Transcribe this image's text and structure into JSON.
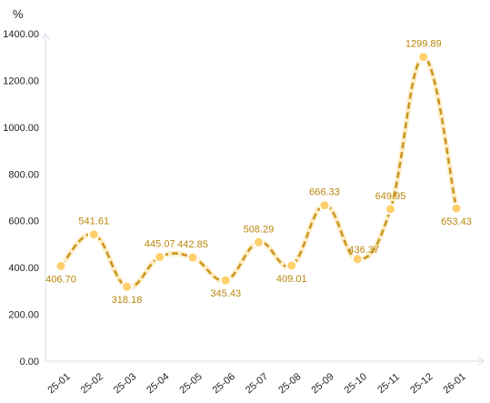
{
  "chart_data": {
    "type": "line",
    "title": "",
    "xlabel": "",
    "ylabel": "%",
    "categories": [
      "25-01",
      "25-02",
      "25-03",
      "25-04",
      "25-05",
      "25-06",
      "25-07",
      "25-08",
      "25-09",
      "25-10",
      "25-11",
      "25-12",
      "26-01"
    ],
    "series": [
      {
        "values": [
          406.7,
          541.61,
          318.18,
          445.07,
          442.85,
          345.43,
          508.29,
          409.01,
          666.33,
          436.37,
          649.95,
          1299.89,
          653.43
        ],
        "labels": [
          "406.70",
          "541.61",
          "318.18",
          "445.07",
          "442.85",
          "345.43",
          "508.29",
          "409.01",
          "666.33",
          "436.37",
          "649.95",
          "1299.89",
          "653.43"
        ],
        "color": "#c8961e",
        "marker_color": "#ffcf6b"
      }
    ],
    "y_ticks": [
      "0.00",
      "200.00",
      "400.00",
      "600.00",
      "800.00",
      "1000.00",
      "1200.00",
      "1400.00"
    ],
    "ylim": [
      0,
      1400
    ],
    "grid": false,
    "legend": "none",
    "line_style": "dashed-smooth",
    "axis_color": "#d8dde8"
  }
}
